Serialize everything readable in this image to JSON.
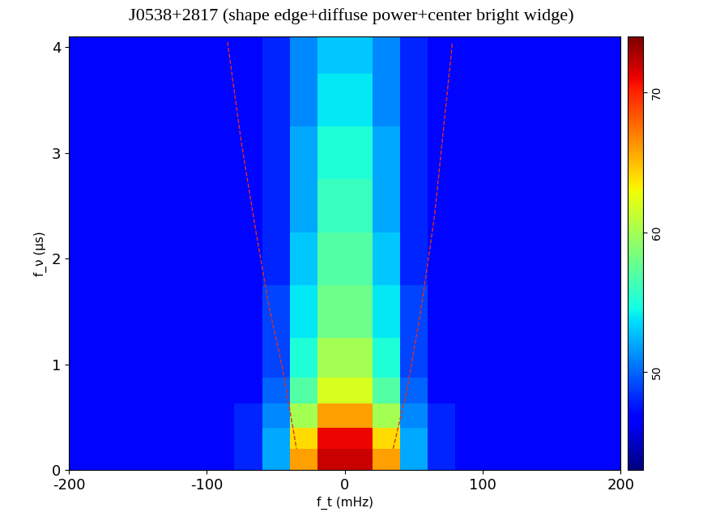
{
  "chart_data": {
    "type": "heatmap",
    "title": "J0538+2817 (shape edge+diffuse power+center bright widge)",
    "x_label": "f_t (mHz)",
    "y_label": "f_ν (μs)",
    "x": [
      -190,
      -170,
      -150,
      -130,
      -110,
      -90,
      -70,
      -50,
      -30,
      -10,
      10,
      30,
      50,
      70,
      90,
      110,
      130,
      150,
      170,
      190
    ],
    "y": [
      0.1,
      0.3,
      0.5,
      0.75,
      1.0,
      1.5,
      2.0,
      2.5,
      3.0,
      3.5,
      4.0
    ],
    "cells": [
      [
        47,
        47,
        47,
        47,
        47,
        47,
        48,
        52,
        66,
        72,
        72,
        66,
        52,
        48,
        47,
        47,
        47,
        47,
        47,
        47
      ],
      [
        47,
        47,
        47,
        47,
        47,
        47,
        48,
        52,
        64,
        71,
        71,
        64,
        52,
        48,
        47,
        47,
        47,
        47,
        47,
        47
      ],
      [
        47,
        47,
        47,
        47,
        47,
        47,
        48,
        51,
        60,
        66,
        66,
        60,
        51,
        48,
        47,
        47,
        47,
        47,
        47,
        47
      ],
      [
        47,
        47,
        47,
        47,
        47,
        47,
        47,
        50,
        57,
        62,
        62,
        57,
        50,
        47,
        47,
        47,
        47,
        47,
        47,
        47
      ],
      [
        47,
        47,
        47,
        47,
        47,
        47,
        47,
        49,
        55,
        60,
        60,
        55,
        49,
        47,
        47,
        47,
        47,
        47,
        47,
        47
      ],
      [
        47,
        47,
        47,
        47,
        47,
        47,
        47,
        49,
        54,
        58,
        58,
        54,
        49,
        47,
        47,
        47,
        47,
        47,
        47,
        47
      ],
      [
        47,
        47,
        47,
        47,
        47,
        47,
        47,
        48,
        53,
        57,
        57,
        53,
        48,
        47,
        47,
        47,
        47,
        47,
        47,
        47
      ],
      [
        47,
        47,
        47,
        47,
        47,
        47,
        47,
        48,
        52,
        56,
        56,
        52,
        48,
        47,
        47,
        47,
        47,
        47,
        47,
        47
      ],
      [
        47,
        47,
        47,
        47,
        47,
        47,
        47,
        48,
        52,
        55,
        55,
        52,
        48,
        47,
        47,
        47,
        47,
        47,
        47,
        47
      ],
      [
        47,
        47,
        47,
        47,
        47,
        47,
        47,
        48,
        51,
        54,
        54,
        51,
        48,
        47,
        47,
        47,
        47,
        47,
        47,
        47
      ],
      [
        47,
        47,
        47,
        47,
        47,
        47,
        47,
        48,
        51,
        53,
        53,
        51,
        48,
        47,
        47,
        47,
        47,
        47,
        47,
        47
      ]
    ],
    "clim": [
      43,
      74
    ],
    "cticks": [
      50,
      60,
      70
    ],
    "curves": [
      {
        "x": [
          -85,
          -75,
          -65,
          -55,
          -45,
          -35
        ],
        "y": [
          4.05,
          3.1,
          2.3,
          1.55,
          0.95,
          0.2
        ],
        "color": "#e03020",
        "line_style": "dashed"
      },
      {
        "x": [
          35,
          45,
          55,
          65,
          78
        ],
        "y": [
          0.2,
          0.75,
          1.5,
          2.4,
          4.05
        ],
        "color": "#e03020",
        "line_style": "dashed"
      }
    ],
    "xlim": [
      -200,
      200
    ],
    "ylim": [
      0,
      4.1
    ],
    "xticks": [
      -200,
      -100,
      0,
      100,
      200
    ],
    "yticks": [
      0,
      1,
      2,
      3,
      4
    ],
    "grid": false
  }
}
